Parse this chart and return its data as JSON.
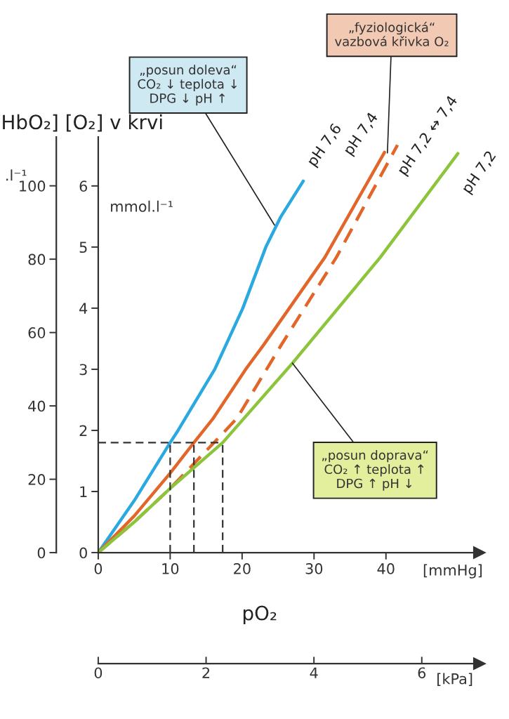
{
  "chart_data": {
    "type": "line",
    "title": "HbO₂] [O₂] v krvi",
    "ylabel": "mmol.l⁻¹",
    "y2label": ".l⁻¹",
    "xlabel": "[mmHg]",
    "x2label": "[kPa]",
    "xlim": [
      0,
      53
    ],
    "xticks": [
      0,
      10,
      20,
      30,
      40
    ],
    "ylim": [
      0,
      6.8
    ],
    "yticks": [
      0,
      1,
      2,
      3,
      4,
      5,
      6
    ],
    "y2lim": [
      0,
      113.3
    ],
    "y2ticks": [
      0,
      20,
      40,
      60,
      80,
      100
    ],
    "x2lim": [
      0,
      7.07
    ],
    "x2ticks": [
      0,
      2,
      4,
      6
    ],
    "grid": false,
    "legend": false,
    "marker": "none",
    "series": [
      {
        "name": "pH 7,6",
        "color": "#29a9e0",
        "x": [
          0,
          5,
          10,
          11.1,
          16.2,
          20.1,
          23.3,
          25.4,
          28.5
        ],
        "values": [
          0,
          0.85,
          1.8,
          2,
          3,
          4,
          5,
          5.5,
          6.08
        ]
      },
      {
        "name": "pH 7,4",
        "color": "#e2662a",
        "x": [
          0,
          5,
          10,
          13.3,
          16,
          20.5,
          23,
          31.5,
          39.8
        ],
        "values": [
          0,
          0.6,
          1.3,
          1.8,
          2.2,
          3,
          3.4,
          4.83,
          6.55
        ]
      },
      {
        "name": "pH 7,2 ↔ 7,4",
        "color": "#e2662a",
        "line_style": "dashed",
        "x": [
          0,
          5,
          10,
          16.5,
          19.3,
          25.4,
          33.1,
          41.6
        ],
        "values": [
          0,
          0.5,
          1.05,
          1.85,
          2.2,
          3.39,
          4.83,
          6.67
        ]
      },
      {
        "name": "pH 7,2",
        "color": "#8cc43c",
        "x": [
          0,
          5,
          10,
          17.3,
          27,
          39.2,
          50
        ],
        "values": [
          0,
          0.5,
          1.05,
          1.8,
          3.1,
          4.83,
          6.53
        ]
      }
    ],
    "ref_lines": [
      {
        "axis": "y",
        "value": 1.8,
        "color": "#333333",
        "line_style": "dashed"
      },
      {
        "axis": "x",
        "value": 10,
        "color": "#333333",
        "line_style": "dashed"
      },
      {
        "axis": "x",
        "value": 13.3,
        "color": "#333333",
        "line_style": "dashed"
      },
      {
        "axis": "x",
        "value": 17.3,
        "color": "#333333",
        "line_style": "dashed"
      }
    ],
    "annotations": [
      {
        "text": "„posun doleva“\nCO₂ ↓ teplota ↓\nDPG ↓ pH ↑",
        "x": 24.5,
        "y": 5.36
      },
      {
        "text": "„fyziologická“\nvazbová křivka O₂",
        "x": 40.2,
        "y": 6.54
      },
      {
        "text": "„posun doprava“\nCO₂ ↑ teplota ↑\nDPG ↑ pH ↓",
        "x": 27,
        "y": 3.1
      },
      "pO₂"
    ]
  }
}
